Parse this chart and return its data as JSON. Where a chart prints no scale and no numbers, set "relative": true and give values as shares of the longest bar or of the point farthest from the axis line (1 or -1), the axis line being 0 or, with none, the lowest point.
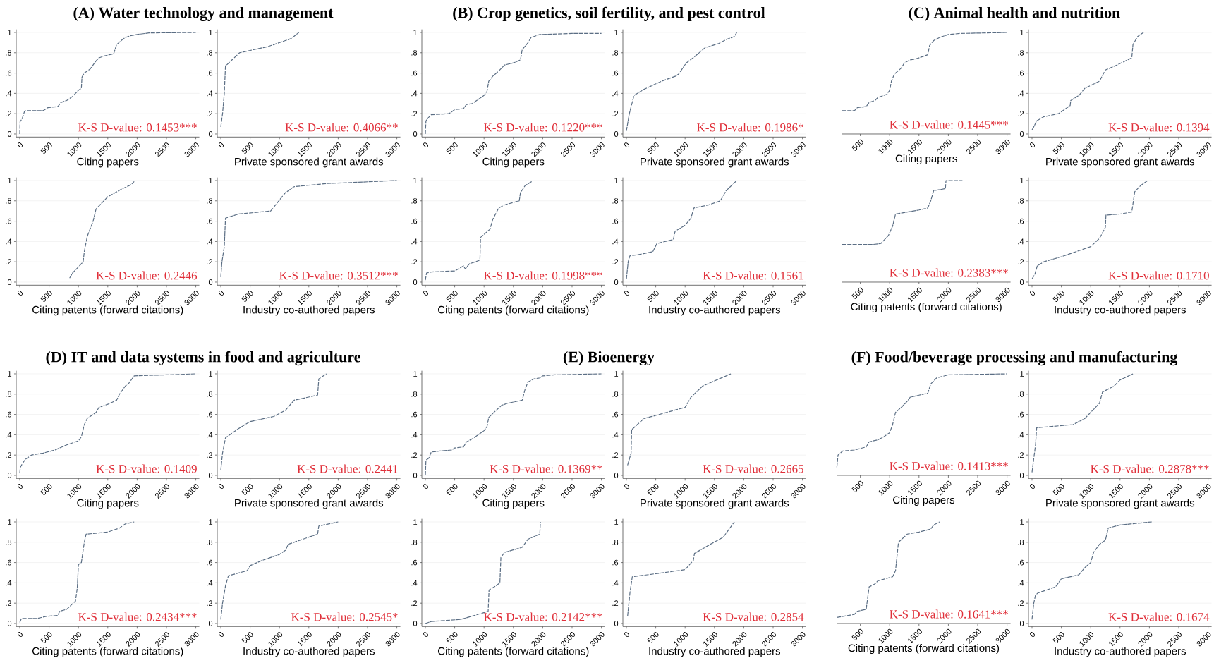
{
  "chart_data": [
    {
      "type": "line",
      "title": "(A) Water technology and management",
      "xlabel": "Citing papers",
      "annotations": [
        "K-S D-value: 0.1453***"
      ],
      "x": [
        0,
        5,
        40,
        80,
        100,
        400,
        480,
        650,
        700,
        800,
        900,
        950,
        1000,
        1050,
        1060,
        1100,
        1200,
        1300,
        1350,
        1450,
        1600,
        1650,
        1750,
        1800,
        1900,
        2000,
        2200,
        3000
      ],
      "values": [
        0,
        0.12,
        0.15,
        0.22,
        0.23,
        0.23,
        0.26,
        0.27,
        0.31,
        0.33,
        0.37,
        0.4,
        0.43,
        0.45,
        0.56,
        0.6,
        0.64,
        0.72,
        0.75,
        0.77,
        0.79,
        0.88,
        0.93,
        0.95,
        0.97,
        0.98,
        0.995,
        1.0
      ],
      "color": "#5b6e84",
      "line_style": "dashed",
      "xlim": [
        -60,
        3060
      ],
      "ylim": [
        -0.03,
        1.03
      ],
      "xticks": [
        0,
        500,
        1000,
        1500,
        2000,
        2500,
        3000
      ],
      "yticks": [
        0,
        {
          "value": 0.2,
          "label": ".2"
        },
        {
          "value": 0.4,
          "label": ".4"
        },
        {
          "value": 0.6,
          "label": ".6"
        },
        {
          "value": 0.8,
          "label": ".8"
        },
        1
      ],
      "grid": "y"
    },
    {
      "type": "line",
      "xlabel": "Private sponsored grant awards",
      "annotations": [
        "K-S D-value: 0.4066**"
      ],
      "x": [
        0,
        30,
        60,
        80,
        100,
        320,
        800,
        1200,
        1330
      ],
      "values": [
        0.07,
        0.2,
        0.4,
        0.67,
        0.68,
        0.8,
        0.86,
        0.94,
        1.0
      ],
      "color": "#5b6e84",
      "line_style": "dashed",
      "xlim": [
        -60,
        3060
      ],
      "ylim": [
        -0.03,
        1.03
      ],
      "xticks": [
        0,
        500,
        1000,
        1500,
        2000,
        2500,
        3000
      ],
      "yticks": [
        0,
        {
          "value": 0.2,
          "label": ".2"
        },
        {
          "value": 0.4,
          "label": ".4"
        },
        {
          "value": 0.6,
          "label": ".6"
        },
        {
          "value": 0.8,
          "label": ".8"
        },
        1
      ],
      "grid": "y"
    },
    {
      "type": "line",
      "xlabel": "Citing patents (forward citations)",
      "annotations": [
        "K-S D-value: 0.2446"
      ],
      "x": [
        850,
        900,
        1000,
        1080,
        1100,
        1150,
        1250,
        1300,
        1500,
        1750,
        1900,
        1950
      ],
      "values": [
        0.04,
        0.09,
        0.15,
        0.2,
        0.3,
        0.45,
        0.6,
        0.72,
        0.84,
        0.92,
        0.96,
        0.99
      ],
      "color": "#5b6e84",
      "line_style": "dashed",
      "xlim": [
        -60,
        3060
      ],
      "ylim": [
        -0.03,
        1.03
      ],
      "xticks": [
        0,
        500,
        1000,
        1500,
        2000,
        2500,
        3000
      ],
      "yticks": [
        0,
        {
          "value": 0.2,
          "label": ".2"
        },
        {
          "value": 0.4,
          "label": ".4"
        },
        {
          "value": 0.6,
          "label": ".6"
        },
        {
          "value": 0.8,
          "label": ".8"
        },
        1
      ],
      "grid": "y"
    },
    {
      "type": "line",
      "xlabel": "Industry co-authored papers",
      "annotations": [
        "K-S D-value: 0.3512***"
      ],
      "x": [
        0,
        20,
        60,
        80,
        300,
        850,
        1100,
        1150,
        1250,
        1800,
        3000
      ],
      "values": [
        0.05,
        0.2,
        0.35,
        0.63,
        0.67,
        0.7,
        0.88,
        0.9,
        0.94,
        0.97,
        1.0
      ],
      "color": "#5b6e84",
      "line_style": "dashed",
      "xlim": [
        -60,
        3060
      ],
      "ylim": [
        -0.03,
        1.03
      ],
      "xticks": [
        0,
        500,
        1000,
        1500,
        2000,
        2500,
        3000
      ],
      "yticks": [
        0,
        {
          "value": 0.2,
          "label": ".2"
        },
        {
          "value": 0.4,
          "label": ".4"
        },
        {
          "value": 0.6,
          "label": ".6"
        },
        {
          "value": 0.8,
          "label": ".8"
        },
        1
      ],
      "grid": "y"
    },
    {
      "type": "line",
      "title": "(B) Crop genetics, soil fertility, and pest control",
      "xlabel": "Citing papers",
      "annotations": [
        "K-S D-value: 0.1220***"
      ],
      "x": [
        0,
        10,
        50,
        100,
        400,
        500,
        650,
        700,
        800,
        900,
        1000,
        1050,
        1080,
        1150,
        1250,
        1350,
        1500,
        1620,
        1650,
        1750,
        1800,
        1950,
        2500,
        3000
      ],
      "values": [
        0,
        0.13,
        0.16,
        0.19,
        0.2,
        0.24,
        0.25,
        0.29,
        0.3,
        0.34,
        0.38,
        0.42,
        0.52,
        0.57,
        0.62,
        0.68,
        0.7,
        0.73,
        0.83,
        0.9,
        0.95,
        0.98,
        0.99,
        0.99
      ],
      "color": "#5b6e84",
      "line_style": "dashed",
      "xlim": [
        -60,
        3060
      ],
      "ylim": [
        -0.03,
        1.03
      ],
      "xticks": [
        0,
        500,
        1000,
        1500,
        2000,
        2500,
        3000
      ],
      "yticks": [
        0,
        {
          "value": 0.2,
          "label": ".2"
        },
        {
          "value": 0.4,
          "label": ".4"
        },
        {
          "value": 0.6,
          "label": ".6"
        },
        {
          "value": 0.8,
          "label": ".8"
        },
        1
      ],
      "grid": "y"
    },
    {
      "type": "line",
      "xlabel": "Private sponsored grant awards",
      "annotations": [
        "K-S D-value: 0.1986*"
      ],
      "x": [
        0,
        50,
        130,
        300,
        600,
        840,
        890,
        1020,
        1160,
        1340,
        1570,
        1700,
        1840,
        1880
      ],
      "values": [
        0.03,
        0.2,
        0.38,
        0.44,
        0.52,
        0.57,
        0.59,
        0.7,
        0.76,
        0.85,
        0.89,
        0.93,
        0.96,
        1.0
      ],
      "color": "#5b6e84",
      "line_style": "dashed",
      "xlim": [
        -60,
        3060
      ],
      "ylim": [
        -0.03,
        1.03
      ],
      "xticks": [
        0,
        500,
        1000,
        1500,
        2000,
        2500,
        3000
      ],
      "yticks": [
        0,
        {
          "value": 0.2,
          "label": ".2"
        },
        {
          "value": 0.4,
          "label": ".4"
        },
        {
          "value": 0.6,
          "label": ".6"
        },
        {
          "value": 0.8,
          "label": ".8"
        },
        1
      ],
      "grid": "y"
    },
    {
      "type": "line",
      "xlabel": "Citing patents (forward citations)",
      "annotations": [
        "K-S D-value: 0.1998***"
      ],
      "x": [
        0,
        20,
        100,
        500,
        650,
        680,
        750,
        900,
        930,
        940,
        1100,
        1150,
        1250,
        1350,
        1600,
        1620,
        1700,
        1840
      ],
      "values": [
        0.02,
        0.09,
        0.1,
        0.11,
        0.16,
        0.13,
        0.18,
        0.21,
        0.22,
        0.44,
        0.52,
        0.62,
        0.73,
        0.76,
        0.8,
        0.88,
        0.95,
        1.0
      ],
      "color": "#5b6e84",
      "line_style": "dashed",
      "xlim": [
        -60,
        3060
      ],
      "ylim": [
        -0.03,
        1.03
      ],
      "xticks": [
        0,
        500,
        1000,
        1500,
        2000,
        2500,
        3000
      ],
      "yticks": [
        0,
        {
          "value": 0.2,
          "label": ".2"
        },
        {
          "value": 0.4,
          "label": ".4"
        },
        {
          "value": 0.6,
          "label": ".6"
        },
        {
          "value": 0.8,
          "label": ".8"
        },
        1
      ],
      "grid": "y"
    },
    {
      "type": "line",
      "xlabel": "Industry co-authored papers",
      "annotations": [
        "K-S D-value: 0.1561"
      ],
      "x": [
        0,
        30,
        60,
        200,
        450,
        520,
        800,
        830,
        1000,
        1100,
        1150,
        1400,
        1600,
        1700,
        1880
      ],
      "values": [
        0.03,
        0.2,
        0.26,
        0.27,
        0.3,
        0.38,
        0.42,
        0.5,
        0.56,
        0.63,
        0.73,
        0.76,
        0.8,
        0.9,
        1.0
      ],
      "color": "#5b6e84",
      "line_style": "dashed",
      "xlim": [
        -60,
        3060
      ],
      "ylim": [
        -0.03,
        1.03
      ],
      "xticks": [
        0,
        500,
        1000,
        1500,
        2000,
        2500,
        3000
      ],
      "yticks": [
        0,
        {
          "value": 0.2,
          "label": ".2"
        },
        {
          "value": 0.4,
          "label": ".4"
        },
        {
          "value": 0.6,
          "label": ".6"
        },
        {
          "value": 0.8,
          "label": ".8"
        },
        1
      ],
      "grid": "y"
    },
    {
      "type": "line",
      "title": "(C) Animal health and nutrition",
      "xlabel": "Citing papers",
      "annotations": [
        "K-S D-value: 0.1445***"
      ],
      "x": [
        190,
        400,
        450,
        600,
        650,
        750,
        800,
        950,
        1000,
        1030,
        1080,
        1200,
        1250,
        1350,
        1450,
        1650,
        1680,
        1750,
        1850,
        2000,
        2200,
        3000
      ],
      "values": [
        0.23,
        0.23,
        0.26,
        0.27,
        0.31,
        0.33,
        0.36,
        0.39,
        0.43,
        0.52,
        0.59,
        0.65,
        0.7,
        0.73,
        0.74,
        0.78,
        0.87,
        0.92,
        0.95,
        0.98,
        0.99,
        1.0
      ],
      "color": "#5b6e84",
      "line_style": "dashed",
      "xlim": [
        190,
        3060
      ],
      "relative": true,
      "xticks": [
        500,
        1000,
        1500,
        2000,
        2500,
        3000
      ]
    },
    {
      "type": "line",
      "xlabel": "Private sponsored grant awards",
      "annotations": [
        "K-S D-value: 0.1394"
      ],
      "x": [
        0,
        30,
        80,
        200,
        450,
        650,
        660,
        800,
        900,
        1150,
        1250,
        1450,
        1700,
        1720,
        1800,
        1900
      ],
      "values": [
        0.04,
        0.07,
        0.13,
        0.17,
        0.2,
        0.28,
        0.33,
        0.38,
        0.45,
        0.52,
        0.63,
        0.68,
        0.75,
        0.88,
        0.96,
        1.0
      ],
      "color": "#5b6e84",
      "line_style": "dashed",
      "xlim": [
        -60,
        3060
      ],
      "ylim": [
        -0.03,
        1.03
      ],
      "xticks": [
        0,
        500,
        1000,
        1500,
        2000,
        2500,
        3000
      ],
      "yticks": [
        0,
        {
          "value": 0.2,
          "label": ".2"
        },
        {
          "value": 0.4,
          "label": ".4"
        },
        {
          "value": 0.6,
          "label": ".6"
        },
        {
          "value": 0.8,
          "label": ".8"
        },
        1
      ],
      "grid": "y"
    },
    {
      "type": "line",
      "xlabel": "Citing patents (forward citations)",
      "annotations": [
        "K-S D-value: 0.2383***"
      ],
      "x": [
        190,
        700,
        850,
        980,
        1050,
        1100,
        1200,
        1500,
        1650,
        1700,
        1750,
        1950,
        1960,
        2240
      ],
      "values": [
        0.37,
        0.37,
        0.38,
        0.46,
        0.55,
        0.67,
        0.68,
        0.71,
        0.73,
        0.8,
        0.9,
        0.92,
        1.0,
        1.0
      ],
      "color": "#5b6e84",
      "line_style": "dashed",
      "xlim": [
        190,
        3060
      ],
      "relative": true,
      "xticks": [
        500,
        1000,
        1500,
        2000,
        2500,
        3000
      ]
    },
    {
      "type": "line",
      "xlabel": "Industry co-authored papers",
      "annotations": [
        "K-S D-value: 0.1710"
      ],
      "x": [
        0,
        50,
        90,
        200,
        500,
        700,
        900,
        1000,
        1150,
        1250,
        1260,
        1500,
        1700,
        1750,
        1850,
        1970
      ],
      "values": [
        0.03,
        0.08,
        0.16,
        0.2,
        0.25,
        0.29,
        0.33,
        0.35,
        0.43,
        0.54,
        0.66,
        0.67,
        0.69,
        0.89,
        0.95,
        1.0
      ],
      "color": "#5b6e84",
      "line_style": "dashed",
      "xlim": [
        -60,
        3060
      ],
      "ylim": [
        -0.03,
        1.03
      ],
      "xticks": [
        0,
        500,
        1000,
        1500,
        2000,
        2500,
        3000
      ],
      "yticks": [
        0,
        {
          "value": 0.2,
          "label": ".2"
        },
        {
          "value": 0.4,
          "label": ".4"
        },
        {
          "value": 0.6,
          "label": ".6"
        },
        {
          "value": 0.8,
          "label": ".8"
        },
        1
      ],
      "grid": "y"
    },
    {
      "type": "line",
      "title": "(D) IT and data systems in food and agriculture",
      "xlabel": "Citing papers",
      "annotations": [
        "K-S D-value: 0.1409"
      ],
      "x": [
        0,
        10,
        50,
        100,
        200,
        400,
        600,
        800,
        1000,
        1050,
        1100,
        1150,
        1300,
        1350,
        1500,
        1650,
        1700,
        1800,
        1850,
        1950,
        2500,
        3000
      ],
      "values": [
        0.02,
        0.08,
        0.12,
        0.16,
        0.2,
        0.22,
        0.25,
        0.3,
        0.34,
        0.38,
        0.5,
        0.56,
        0.62,
        0.67,
        0.7,
        0.74,
        0.8,
        0.88,
        0.9,
        0.98,
        0.99,
        1.0
      ],
      "color": "#5b6e84",
      "line_style": "dashed",
      "xlim": [
        -60,
        3060
      ],
      "ylim": [
        -0.03,
        1.03
      ],
      "xticks": [
        0,
        500,
        1000,
        1500,
        2000,
        2500,
        3000
      ],
      "yticks": [
        0,
        {
          "value": 0.2,
          "label": ".2"
        },
        {
          "value": 0.4,
          "label": ".4"
        },
        {
          "value": 0.6,
          "label": ".6"
        },
        {
          "value": 0.8,
          "label": ".8"
        },
        1
      ],
      "grid": "y"
    },
    {
      "type": "line",
      "xlabel": "Private sponsored grant awards",
      "annotations": [
        "K-S D-value: 0.2441"
      ],
      "x": [
        0,
        30,
        80,
        300,
        500,
        900,
        1100,
        1250,
        1650,
        1670,
        1800
      ],
      "values": [
        0.05,
        0.22,
        0.37,
        0.46,
        0.53,
        0.58,
        0.64,
        0.74,
        0.79,
        0.95,
        1.0
      ],
      "color": "#5b6e84",
      "line_style": "dashed",
      "xlim": [
        -60,
        3060
      ],
      "ylim": [
        -0.03,
        1.03
      ],
      "xticks": [
        0,
        500,
        1000,
        1500,
        2000,
        2500,
        3000
      ],
      "yticks": [
        0,
        {
          "value": 0.2,
          "label": ".2"
        },
        {
          "value": 0.4,
          "label": ".4"
        },
        {
          "value": 0.6,
          "label": ".6"
        },
        {
          "value": 0.8,
          "label": ".8"
        },
        1
      ],
      "grid": "y"
    },
    {
      "type": "line",
      "xlabel": "Citing patents (forward citations)",
      "annotations": [
        "K-S D-value: 0.2434***"
      ],
      "x": [
        0,
        30,
        300,
        450,
        650,
        680,
        800,
        950,
        980,
        1000,
        1050,
        1100,
        1130,
        1500,
        1700,
        1800,
        1950
      ],
      "values": [
        0.01,
        0.05,
        0.05,
        0.07,
        0.08,
        0.12,
        0.14,
        0.22,
        0.35,
        0.58,
        0.6,
        0.8,
        0.88,
        0.9,
        0.94,
        0.98,
        1.0
      ],
      "color": "#5b6e84",
      "line_style": "dashed",
      "xlim": [
        -60,
        3060
      ],
      "ylim": [
        -0.03,
        1.03
      ],
      "xticks": [
        0,
        500,
        1000,
        1500,
        2000,
        2500,
        3000
      ],
      "yticks": [
        0,
        {
          "value": 0.2,
          "label": ".2"
        },
        {
          "value": 0.4,
          "label": ".4"
        },
        {
          "value": 0.6,
          "label": ".6"
        },
        {
          "value": 0.8,
          "label": ".8"
        },
        1
      ],
      "grid": "y"
    },
    {
      "type": "line",
      "xlabel": "Industry co-authored papers",
      "annotations": [
        "K-S D-value: 0.2545*"
      ],
      "x": [
        0,
        30,
        80,
        130,
        450,
        500,
        700,
        1000,
        1100,
        1150,
        1300,
        1650,
        1670,
        2000
      ],
      "values": [
        0.04,
        0.2,
        0.37,
        0.47,
        0.52,
        0.57,
        0.62,
        0.68,
        0.72,
        0.78,
        0.81,
        0.88,
        0.96,
        1.0
      ],
      "color": "#5b6e84",
      "line_style": "dashed",
      "xlim": [
        -60,
        3060
      ],
      "ylim": [
        -0.03,
        1.03
      ],
      "xticks": [
        0,
        500,
        1000,
        1500,
        2000,
        2500,
        3000
      ],
      "yticks": [
        0,
        {
          "value": 0.2,
          "label": ".2"
        },
        {
          "value": 0.4,
          "label": ".4"
        },
        {
          "value": 0.6,
          "label": ".6"
        },
        {
          "value": 0.8,
          "label": ".8"
        },
        1
      ],
      "grid": "y"
    },
    {
      "type": "line",
      "title": "(E) Bioenergy",
      "xlabel": "Citing papers",
      "annotations": [
        "K-S D-value: 0.1369**"
      ],
      "x": [
        0,
        10,
        60,
        100,
        250,
        450,
        500,
        650,
        700,
        800,
        900,
        1000,
        1050,
        1080,
        1150,
        1300,
        1400,
        1650,
        1700,
        1750,
        1850,
        1950,
        2000,
        2200,
        3000
      ],
      "values": [
        0,
        0.15,
        0.17,
        0.23,
        0.24,
        0.25,
        0.27,
        0.28,
        0.33,
        0.36,
        0.4,
        0.44,
        0.48,
        0.57,
        0.61,
        0.69,
        0.71,
        0.74,
        0.85,
        0.92,
        0.95,
        0.96,
        0.98,
        0.99,
        1.0
      ],
      "color": "#5b6e84",
      "line_style": "dashed",
      "xlim": [
        -60,
        3060
      ],
      "ylim": [
        -0.03,
        1.03
      ],
      "xticks": [
        0,
        500,
        1000,
        1500,
        2000,
        2500,
        3000
      ],
      "yticks": [
        0,
        {
          "value": 0.2,
          "label": ".2"
        },
        {
          "value": 0.4,
          "label": ".4"
        },
        {
          "value": 0.6,
          "label": ".6"
        },
        {
          "value": 0.8,
          "label": ".8"
        },
        1
      ],
      "grid": "y"
    },
    {
      "type": "line",
      "xlabel": "Private sponsored grant awards",
      "annotations": [
        "K-S D-value: 0.2665"
      ],
      "x": [
        20,
        80,
        90,
        300,
        500,
        1000,
        1100,
        1300,
        1500,
        1780
      ],
      "values": [
        0.1,
        0.22,
        0.45,
        0.56,
        0.59,
        0.67,
        0.77,
        0.88,
        0.93,
        1.0
      ],
      "color": "#5b6e84",
      "line_style": "dashed",
      "xlim": [
        -60,
        3060
      ],
      "ylim": [
        -0.03,
        1.03
      ],
      "xticks": [
        0,
        500,
        1000,
        1500,
        2000,
        2500,
        3000
      ],
      "yticks": [
        0,
        {
          "value": 0.2,
          "label": ".2"
        },
        {
          "value": 0.4,
          "label": ".4"
        },
        {
          "value": 0.6,
          "label": ".6"
        },
        {
          "value": 0.8,
          "label": ".8"
        },
        1
      ],
      "grid": "y"
    },
    {
      "type": "line",
      "xlabel": "Citing patents (forward citations)",
      "annotations": [
        "K-S D-value: 0.2142***"
      ],
      "x": [
        0,
        100,
        600,
        900,
        1070,
        1085,
        1200,
        1270,
        1287,
        1350,
        1650,
        1750,
        1950,
        1960
      ],
      "values": [
        0,
        0.02,
        0.04,
        0.09,
        0.12,
        0.33,
        0.37,
        0.4,
        0.65,
        0.7,
        0.75,
        0.83,
        0.88,
        1.0
      ],
      "color": "#5b6e84",
      "line_style": "dashed",
      "xlim": [
        -60,
        3060
      ],
      "ylim": [
        -0.03,
        1.03
      ],
      "xticks": [
        0,
        500,
        1000,
        1500,
        2000,
        2500,
        3000
      ],
      "yticks": [
        0,
        {
          "value": 0.2,
          "label": ".2"
        },
        {
          "value": 0.4,
          "label": ".4"
        },
        {
          "value": 0.6,
          "label": ".6"
        },
        {
          "value": 0.8,
          "label": ".8"
        },
        1
      ],
      "grid": "y"
    },
    {
      "type": "line",
      "xlabel": "Industry co-authored papers",
      "annotations": [
        "K-S D-value: 0.2854"
      ],
      "x": [
        20,
        60,
        100,
        500,
        1000,
        1140,
        1160,
        1400,
        1650,
        1840
      ],
      "values": [
        0.07,
        0.3,
        0.46,
        0.49,
        0.53,
        0.62,
        0.69,
        0.77,
        0.85,
        1.0
      ],
      "color": "#5b6e84",
      "line_style": "dashed",
      "xlim": [
        -60,
        3060
      ],
      "ylim": [
        -0.03,
        1.03
      ],
      "xticks": [
        0,
        500,
        1000,
        1500,
        2000,
        2500,
        3000
      ],
      "yticks": [
        0,
        {
          "value": 0.2,
          "label": ".2"
        },
        {
          "value": 0.4,
          "label": ".4"
        },
        {
          "value": 0.6,
          "label": ".6"
        },
        {
          "value": 0.8,
          "label": ".8"
        },
        1
      ],
      "grid": "y"
    },
    {
      "type": "line",
      "title": "(F) Food/beverage processing and manufacturing",
      "xlabel": "Citing papers",
      "annotations": [
        "K-S D-value: 0.1413***"
      ],
      "x": [
        100,
        120,
        200,
        400,
        600,
        650,
        800,
        900,
        1000,
        1050,
        1100,
        1200,
        1300,
        1350,
        1500,
        1650,
        1700,
        1800,
        2000,
        3000
      ],
      "values": [
        0.08,
        0.2,
        0.24,
        0.25,
        0.28,
        0.33,
        0.35,
        0.38,
        0.42,
        0.5,
        0.62,
        0.67,
        0.73,
        0.77,
        0.79,
        0.81,
        0.9,
        0.96,
        0.99,
        1.0
      ],
      "color": "#5b6e84",
      "line_style": "dashed",
      "xlim": [
        100,
        3060
      ],
      "relative": true,
      "xticks": [
        500,
        1000,
        1500,
        2000,
        2500,
        3000
      ]
    },
    {
      "type": "line",
      "xlabel": "Private sponsored grant awards",
      "annotations": [
        "K-S D-value: 0.2878***"
      ],
      "x": [
        0,
        60,
        80,
        300,
        700,
        900,
        1050,
        1150,
        1200,
        1400,
        1500,
        1720
      ],
      "values": [
        0.03,
        0.3,
        0.47,
        0.48,
        0.5,
        0.56,
        0.65,
        0.71,
        0.82,
        0.88,
        0.94,
        1.0
      ],
      "color": "#5b6e84",
      "line_style": "dashed",
      "xlim": [
        -60,
        3060
      ],
      "ylim": [
        -0.03,
        1.03
      ],
      "xticks": [
        0,
        500,
        1000,
        1500,
        2000,
        2500,
        3000
      ],
      "yticks": [
        0,
        {
          "value": 0.2,
          "label": ".2"
        },
        {
          "value": 0.4,
          "label": ".4"
        },
        {
          "value": 0.6,
          "label": ".6"
        },
        {
          "value": 0.8,
          "label": ".8"
        },
        1
      ],
      "grid": "y"
    },
    {
      "type": "line",
      "xlabel": "Citing patents (forward citations)",
      "annotations": [
        "K-S D-value: 0.1641***"
      ],
      "x": [
        100,
        400,
        450,
        600,
        650,
        750,
        800,
        1050,
        1100,
        1150,
        1300,
        1500,
        1700,
        1750,
        1850
      ],
      "values": [
        0.06,
        0.09,
        0.12,
        0.14,
        0.36,
        0.39,
        0.42,
        0.46,
        0.52,
        0.8,
        0.88,
        0.9,
        0.93,
        0.97,
        1.0
      ],
      "color": "#5b6e84",
      "line_style": "dashed",
      "xlim": [
        100,
        3060
      ],
      "relative": true,
      "xticks": [
        500,
        1000,
        1500,
        2000,
        2500,
        3000
      ]
    },
    {
      "type": "line",
      "xlabel": "Industry co-authored papers",
      "annotations": [
        "K-S D-value: 0.1674"
      ],
      "x": [
        0,
        30,
        60,
        100,
        400,
        500,
        800,
        900,
        1000,
        1050,
        1150,
        1250,
        1300,
        1500,
        2040
      ],
      "values": [
        0.04,
        0.2,
        0.28,
        0.3,
        0.36,
        0.44,
        0.48,
        0.55,
        0.6,
        0.7,
        0.78,
        0.82,
        0.94,
        0.97,
        1.0
      ],
      "color": "#5b6e84",
      "line_style": "dashed",
      "xlim": [
        -60,
        3060
      ],
      "ylim": [
        -0.03,
        1.03
      ],
      "xticks": [
        0,
        500,
        1000,
        1500,
        2000,
        2500,
        3000
      ],
      "yticks": [
        0,
        {
          "value": 0.2,
          "label": ".2"
        },
        {
          "value": 0.4,
          "label": ".4"
        },
        {
          "value": 0.6,
          "label": ".6"
        },
        {
          "value": 0.8,
          "label": ".8"
        },
        1
      ],
      "grid": "y"
    }
  ]
}
